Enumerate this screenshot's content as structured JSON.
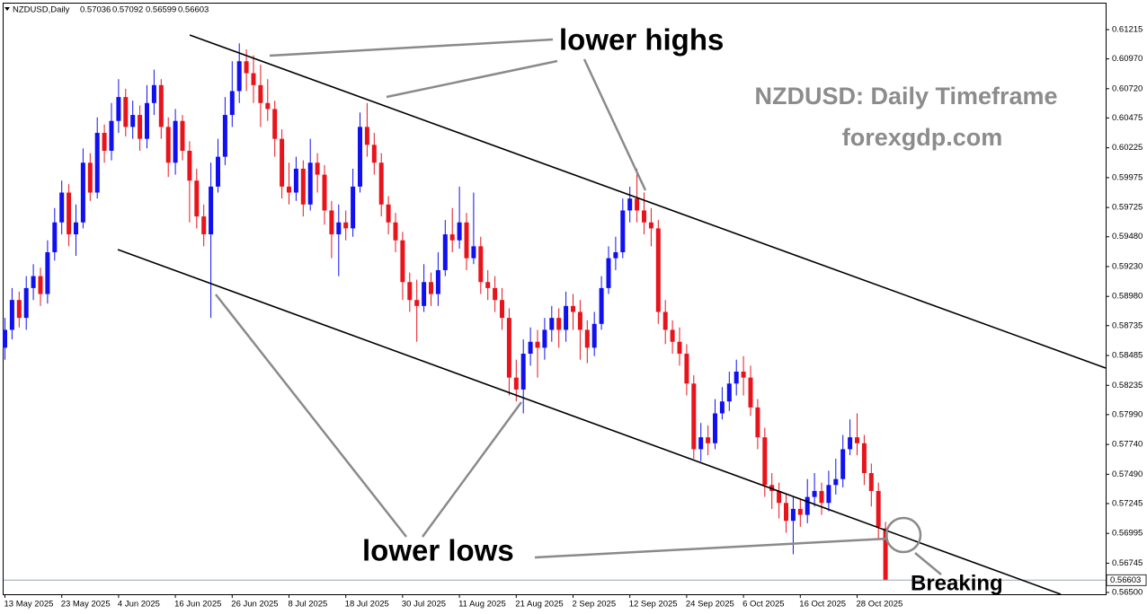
{
  "chart_data": {
    "type": "candlestick",
    "symbol": "NZDUSD,Daily",
    "annotations": {
      "upper": "lower highs",
      "lower": "lower lows",
      "title": "NZDUSD: Daily Timeframe",
      "site": "forexgdp.com",
      "breakout": "Breaking"
    },
    "up_color": "#1010f0",
    "down_color": "#e8141c",
    "ylim": [
      0.56485,
      0.61433
    ],
    "yticks": [
      0.61215,
      {
        "value": 0.6097,
        "label": "0.60970"
      },
      {
        "value": 0.6072,
        "label": "0.60720"
      },
      0.60475,
      0.60225,
      0.59975,
      0.59725,
      {
        "value": 0.5948,
        "label": "0.59480"
      },
      {
        "value": 0.5923,
        "label": "0.59230"
      },
      {
        "value": 0.5898,
        "label": "0.58980"
      },
      0.58735,
      0.58485,
      0.58235,
      {
        "value": 0.5799,
        "label": "0.57990"
      },
      {
        "value": 0.5774,
        "label": "0.57740"
      },
      {
        "value": 0.5749,
        "label": "0.57490"
      },
      0.57245,
      0.56995,
      0.56745,
      {
        "value": 0.565,
        "label": "0.56500"
      }
    ],
    "categories": [
      "13 May 2025",
      null,
      null,
      null,
      null,
      null,
      null,
      null,
      "23 May 2025",
      null,
      null,
      null,
      null,
      null,
      null,
      null,
      "4 Jun 2025",
      null,
      null,
      null,
      null,
      null,
      null,
      null,
      "16 Jun 2025",
      null,
      null,
      null,
      null,
      null,
      null,
      null,
      "26 Jun 2025",
      null,
      null,
      null,
      null,
      null,
      null,
      null,
      "8 Jul 2025",
      null,
      null,
      null,
      null,
      null,
      null,
      null,
      "18 Jul 2025",
      null,
      null,
      null,
      null,
      null,
      null,
      null,
      "30 Jul 2025",
      null,
      null,
      null,
      null,
      null,
      null,
      null,
      "11 Aug 2025",
      null,
      null,
      null,
      null,
      null,
      null,
      null,
      "21 Aug 2025",
      null,
      null,
      null,
      null,
      null,
      null,
      null,
      "2 Sep 2025",
      null,
      null,
      null,
      null,
      null,
      null,
      null,
      "12 Sep 2025",
      null,
      null,
      null,
      null,
      null,
      null,
      null,
      "24 Sep 2025",
      null,
      null,
      null,
      null,
      null,
      null,
      null,
      "6 Oct 2025",
      null,
      null,
      null,
      null,
      null,
      null,
      null,
      "16 Oct 2025",
      null,
      null,
      null,
      null,
      null,
      null,
      null,
      "28 Oct 2025",
      null,
      null,
      null,
      null
    ],
    "ohlc": [
      [
        0.5855,
        0.588,
        0.5845,
        0.587
      ],
      [
        0.587,
        0.5905,
        0.5862,
        0.5895
      ],
      [
        0.5895,
        0.5902,
        0.5872,
        0.588
      ],
      [
        0.588,
        0.5915,
        0.587,
        0.5905
      ],
      [
        0.5905,
        0.5925,
        0.5895,
        0.5915
      ],
      [
        0.5915,
        0.5922,
        0.589,
        0.59
      ],
      [
        0.59,
        0.5945,
        0.5892,
        0.5935
      ],
      [
        0.5935,
        0.5972,
        0.5928,
        0.596
      ],
      [
        0.596,
        0.5995,
        0.595,
        0.5985
      ],
      [
        0.5985,
        0.5992,
        0.594,
        0.595
      ],
      [
        0.595,
        0.5975,
        0.5932,
        0.596
      ],
      [
        0.596,
        0.6022,
        0.5955,
        0.601
      ],
      [
        0.601,
        0.6018,
        0.5978,
        0.5985
      ],
      [
        0.5985,
        0.6048,
        0.598,
        0.6035
      ],
      [
        0.6035,
        0.6042,
        0.601,
        0.602
      ],
      [
        0.602,
        0.606,
        0.6012,
        0.6045
      ],
      [
        0.6045,
        0.608,
        0.6035,
        0.6065
      ],
      [
        0.6065,
        0.6072,
        0.6032,
        0.604
      ],
      [
        0.604,
        0.6062,
        0.603,
        0.605
      ],
      [
        0.605,
        0.6058,
        0.602,
        0.603
      ],
      [
        0.603,
        0.6075,
        0.6022,
        0.606
      ],
      [
        0.606,
        0.6088,
        0.605,
        0.6075
      ],
      [
        0.6075,
        0.608,
        0.603,
        0.604
      ],
      [
        0.604,
        0.6048,
        0.5998,
        0.601
      ],
      [
        0.601,
        0.6055,
        0.6,
        0.6045
      ],
      [
        0.6045,
        0.605,
        0.6012,
        0.602
      ],
      [
        0.602,
        0.6028,
        0.596,
        0.5995
      ],
      [
        0.5995,
        0.6005,
        0.5955,
        0.5965
      ],
      [
        0.5965,
        0.5975,
        0.594,
        0.595
      ],
      [
        0.595,
        0.601,
        0.588,
        0.599
      ],
      [
        0.599,
        0.603,
        0.5985,
        0.6015
      ],
      [
        0.6015,
        0.6065,
        0.6008,
        0.605
      ],
      [
        0.605,
        0.6095,
        0.604,
        0.607
      ],
      [
        0.607,
        0.611,
        0.606,
        0.6095
      ],
      [
        0.6095,
        0.6105,
        0.607,
        0.6085
      ],
      [
        0.6085,
        0.61,
        0.606,
        0.6075
      ],
      [
        0.6075,
        0.6092,
        0.604,
        0.606
      ],
      [
        0.606,
        0.608,
        0.6045,
        0.6055
      ],
      [
        0.6055,
        0.6062,
        0.6015,
        0.603
      ],
      [
        0.603,
        0.6038,
        0.598,
        0.599
      ],
      [
        0.599,
        0.601,
        0.5975,
        0.5985
      ],
      [
        0.5985,
        0.6015,
        0.5978,
        0.6005
      ],
      [
        0.6005,
        0.6012,
        0.5965,
        0.5975
      ],
      [
        0.5975,
        0.603,
        0.597,
        0.601
      ],
      [
        0.601,
        0.6018,
        0.5985,
        0.6
      ],
      [
        0.6,
        0.6008,
        0.5958,
        0.597
      ],
      [
        0.597,
        0.5978,
        0.593,
        0.595
      ],
      [
        0.595,
        0.5975,
        0.5915,
        0.596
      ],
      [
        0.596,
        0.597,
        0.5945,
        0.5955
      ],
      [
        0.5955,
        0.6005,
        0.5948,
        0.599
      ],
      [
        0.599,
        0.6052,
        0.5985,
        0.604
      ],
      [
        0.604,
        0.606,
        0.6015,
        0.6025
      ],
      [
        0.6025,
        0.6035,
        0.6,
        0.601
      ],
      [
        0.601,
        0.6018,
        0.5965,
        0.5975
      ],
      [
        0.5975,
        0.5982,
        0.595,
        0.596
      ],
      [
        0.596,
        0.5968,
        0.5935,
        0.5945
      ],
      [
        0.5945,
        0.5952,
        0.5895,
        0.591
      ],
      [
        0.591,
        0.5918,
        0.5885,
        0.5895
      ],
      [
        0.5895,
        0.5912,
        0.586,
        0.589
      ],
      [
        0.589,
        0.5925,
        0.5885,
        0.591
      ],
      [
        0.591,
        0.5918,
        0.589,
        0.59
      ],
      [
        0.59,
        0.5935,
        0.589,
        0.592
      ],
      [
        0.592,
        0.5962,
        0.5915,
        0.595
      ],
      [
        0.595,
        0.5972,
        0.5935,
        0.5945
      ],
      [
        0.5945,
        0.599,
        0.5938,
        0.596
      ],
      [
        0.596,
        0.5968,
        0.592,
        0.593
      ],
      [
        0.593,
        0.5985,
        0.5925,
        0.594
      ],
      [
        0.594,
        0.5948,
        0.59,
        0.591
      ],
      [
        0.591,
        0.592,
        0.5895,
        0.5905
      ],
      [
        0.5905,
        0.5915,
        0.5885,
        0.5895
      ],
      [
        0.5895,
        0.5905,
        0.587,
        0.588
      ],
      [
        0.588,
        0.5888,
        0.5815,
        0.583
      ],
      [
        0.583,
        0.5845,
        0.581,
        0.582
      ],
      [
        0.582,
        0.5862,
        0.58,
        0.585
      ],
      [
        0.585,
        0.5872,
        0.584,
        0.586
      ],
      [
        0.586,
        0.587,
        0.583,
        0.5855
      ],
      [
        0.5855,
        0.588,
        0.5845,
        0.587
      ],
      [
        0.587,
        0.589,
        0.586,
        0.588
      ],
      [
        0.588,
        0.5888,
        0.5855,
        0.587
      ],
      [
        0.587,
        0.5902,
        0.586,
        0.589
      ],
      [
        0.589,
        0.59,
        0.587,
        0.5885
      ],
      [
        0.5885,
        0.5895,
        0.5845,
        0.587
      ],
      [
        0.587,
        0.5878,
        0.5842,
        0.5855
      ],
      [
        0.5855,
        0.5885,
        0.5848,
        0.5875
      ],
      [
        0.5875,
        0.5915,
        0.587,
        0.5905
      ],
      [
        0.5905,
        0.594,
        0.59,
        0.593
      ],
      [
        0.593,
        0.5948,
        0.592,
        0.5935
      ],
      [
        0.5935,
        0.598,
        0.593,
        0.597
      ],
      [
        0.597,
        0.599,
        0.596,
        0.598
      ],
      [
        0.598,
        0.6005,
        0.596,
        0.597
      ],
      [
        0.597,
        0.5985,
        0.595,
        0.596
      ],
      [
        0.596,
        0.5972,
        0.594,
        0.5955
      ],
      [
        0.5955,
        0.5962,
        0.5875,
        0.5885
      ],
      [
        0.5885,
        0.5895,
        0.5858,
        0.587
      ],
      [
        0.587,
        0.5878,
        0.585,
        0.586
      ],
      [
        0.586,
        0.5872,
        0.584,
        0.585
      ],
      [
        0.585,
        0.5858,
        0.5815,
        0.5825
      ],
      [
        0.5825,
        0.5832,
        0.5762,
        0.577
      ],
      [
        0.577,
        0.5792,
        0.576,
        0.578
      ],
      [
        0.578,
        0.579,
        0.5765,
        0.5775
      ],
      [
        0.5775,
        0.5812,
        0.577,
        0.58
      ],
      [
        0.58,
        0.5822,
        0.5795,
        0.581
      ],
      [
        0.581,
        0.5835,
        0.5802,
        0.5825
      ],
      [
        0.5825,
        0.5845,
        0.5815,
        0.5835
      ],
      [
        0.5835,
        0.5848,
        0.5815,
        0.583
      ],
      [
        0.583,
        0.584,
        0.5798,
        0.5805
      ],
      [
        0.5805,
        0.5812,
        0.577,
        0.578
      ],
      [
        0.578,
        0.5788,
        0.573,
        0.574
      ],
      [
        0.574,
        0.575,
        0.572,
        0.5735
      ],
      [
        0.5735,
        0.5742,
        0.5712,
        0.5725
      ],
      [
        0.5725,
        0.5732,
        0.57,
        0.571
      ],
      [
        0.571,
        0.573,
        0.5682,
        0.572
      ],
      [
        0.572,
        0.5728,
        0.5705,
        0.5715
      ],
      [
        0.5715,
        0.5745,
        0.5708,
        0.573
      ],
      [
        0.573,
        0.575,
        0.5722,
        0.5735
      ],
      [
        0.5735,
        0.5742,
        0.5715,
        0.5725
      ],
      [
        0.5725,
        0.5752,
        0.5718,
        0.574
      ],
      [
        0.574,
        0.5762,
        0.5732,
        0.5745
      ],
      [
        0.5745,
        0.5782,
        0.5738,
        0.577
      ],
      [
        0.577,
        0.5795,
        0.5765,
        0.578
      ],
      [
        0.578,
        0.58,
        0.5765,
        0.5775
      ],
      [
        0.5775,
        0.5782,
        0.574,
        0.575
      ],
      [
        0.575,
        0.5758,
        0.5722,
        0.5735
      ],
      [
        0.5735,
        0.5742,
        0.5695,
        0.5705
      ],
      [
        0.57036,
        0.57092,
        0.56599,
        0.56603
      ]
    ]
  }
}
